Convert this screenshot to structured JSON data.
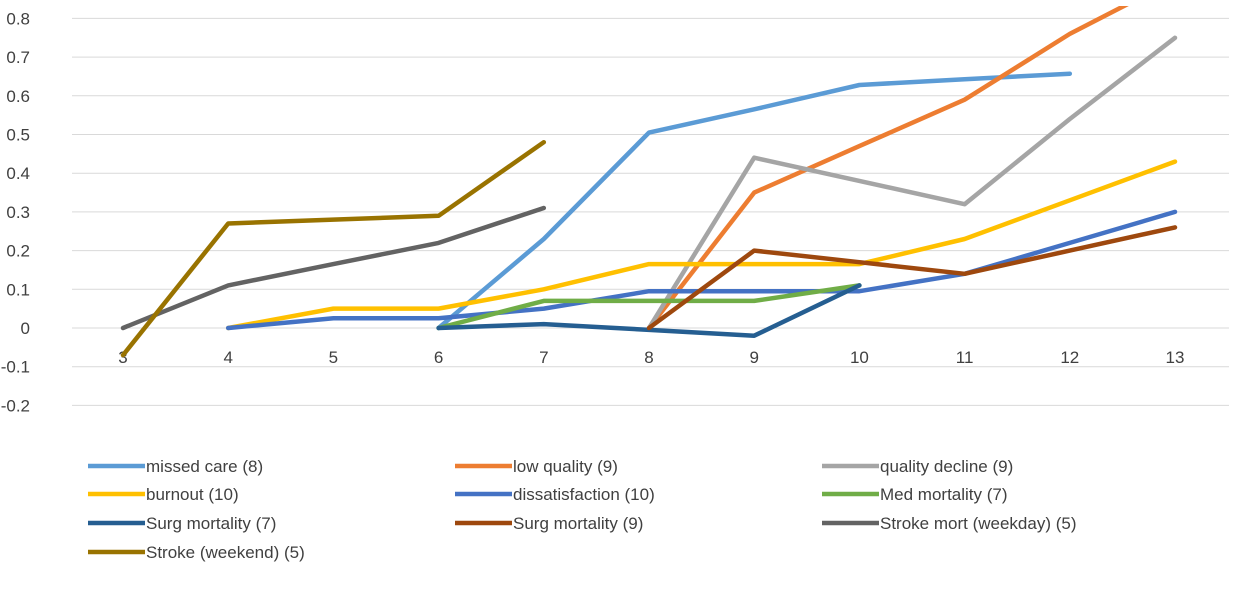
{
  "chart_data": {
    "type": "line",
    "title": "",
    "xlabel": "",
    "ylabel": "",
    "x": [
      3,
      4,
      5,
      6,
      7,
      8,
      9,
      10,
      11,
      12,
      13
    ],
    "xlim": [
      3,
      13
    ],
    "ylim": [
      -0.2,
      0.8
    ],
    "y_ticks": [
      -0.2,
      -0.1,
      0,
      0.1,
      0.2,
      0.3,
      0.4,
      0.5,
      0.6,
      0.7,
      0.8
    ],
    "y_tick_labels": [
      "-0.2",
      "-0.1",
      "0",
      "0.1",
      "0.2",
      "0.3",
      "0.4",
      "0.5",
      "0.6",
      "0.7",
      "0.8"
    ],
    "x_tick_labels": [
      "3",
      "4",
      "5",
      "6",
      "7",
      "8",
      "9",
      "10",
      "11",
      "12",
      "13"
    ],
    "grid": "horizontal",
    "legend_position": "bottom",
    "series": [
      {
        "name": "missed care (8)",
        "color": "#5B9BD5",
        "points": [
          [
            6,
            0
          ],
          [
            7,
            0.23
          ],
          [
            8,
            0.505
          ],
          [
            9,
            0.565
          ],
          [
            10,
            0.628
          ],
          [
            11,
            0.643
          ],
          [
            12,
            0.657
          ]
        ]
      },
      {
        "name": "low quality (9)",
        "color": "#ED7D31",
        "points": [
          [
            8,
            0
          ],
          [
            9,
            0.35
          ],
          [
            10,
            0.47
          ],
          [
            11,
            0.59
          ],
          [
            12,
            0.76
          ],
          [
            13,
            0.9
          ]
        ]
      },
      {
        "name": "quality decline (9)",
        "color": "#A5A5A5",
        "points": [
          [
            8,
            0
          ],
          [
            9,
            0.44
          ],
          [
            10,
            0.38
          ],
          [
            11,
            0.32
          ],
          [
            12,
            0.54
          ],
          [
            13,
            0.75
          ]
        ]
      },
      {
        "name": "burnout (10)",
        "color": "#FFC000",
        "points": [
          [
            4,
            0
          ],
          [
            5,
            0.05
          ],
          [
            6,
            0.05
          ],
          [
            7,
            0.1
          ],
          [
            8,
            0.165
          ],
          [
            9,
            0.165
          ],
          [
            10,
            0.165
          ],
          [
            11,
            0.23
          ],
          [
            12,
            0.33
          ],
          [
            13,
            0.43
          ]
        ]
      },
      {
        "name": "dissatisfaction  (10)",
        "color": "#4472C4",
        "points": [
          [
            4,
            0
          ],
          [
            5,
            0.025
          ],
          [
            6,
            0.025
          ],
          [
            7,
            0.05
          ],
          [
            8,
            0.095
          ],
          [
            9,
            0.095
          ],
          [
            10,
            0.095
          ],
          [
            11,
            0.14
          ],
          [
            12,
            0.22
          ],
          [
            13,
            0.3
          ]
        ]
      },
      {
        "name": "Med mortality (7)",
        "color": "#70AD47",
        "points": [
          [
            6,
            0
          ],
          [
            7,
            0.07
          ],
          [
            8,
            0.07
          ],
          [
            9,
            0.07
          ],
          [
            10,
            0.11
          ]
        ]
      },
      {
        "name": "Surg mortality (7)",
        "color": "#255E91",
        "points": [
          [
            6,
            0
          ],
          [
            7,
            0.01
          ],
          [
            8,
            -0.005
          ],
          [
            9,
            -0.02
          ],
          [
            10,
            0.11
          ]
        ]
      },
      {
        "name": "Surg mortality (9)",
        "color": "#9E480E",
        "points": [
          [
            8,
            0
          ],
          [
            9,
            0.2
          ],
          [
            10,
            0.17
          ],
          [
            11,
            0.14
          ],
          [
            12,
            0.2
          ],
          [
            13,
            0.26
          ]
        ]
      },
      {
        "name": "Stroke mort (weekday) (5)",
        "color": "#636363",
        "points": [
          [
            3,
            0
          ],
          [
            4,
            0.11
          ],
          [
            5,
            0.165
          ],
          [
            6,
            0.22
          ],
          [
            7,
            0.31
          ]
        ]
      },
      {
        "name": "Stroke (weekend) (5)",
        "color": "#997300",
        "points": [
          [
            3,
            -0.07
          ],
          [
            4,
            0.27
          ],
          [
            5,
            0.28
          ],
          [
            6,
            0.29
          ],
          [
            7,
            0.48
          ]
        ]
      }
    ]
  }
}
